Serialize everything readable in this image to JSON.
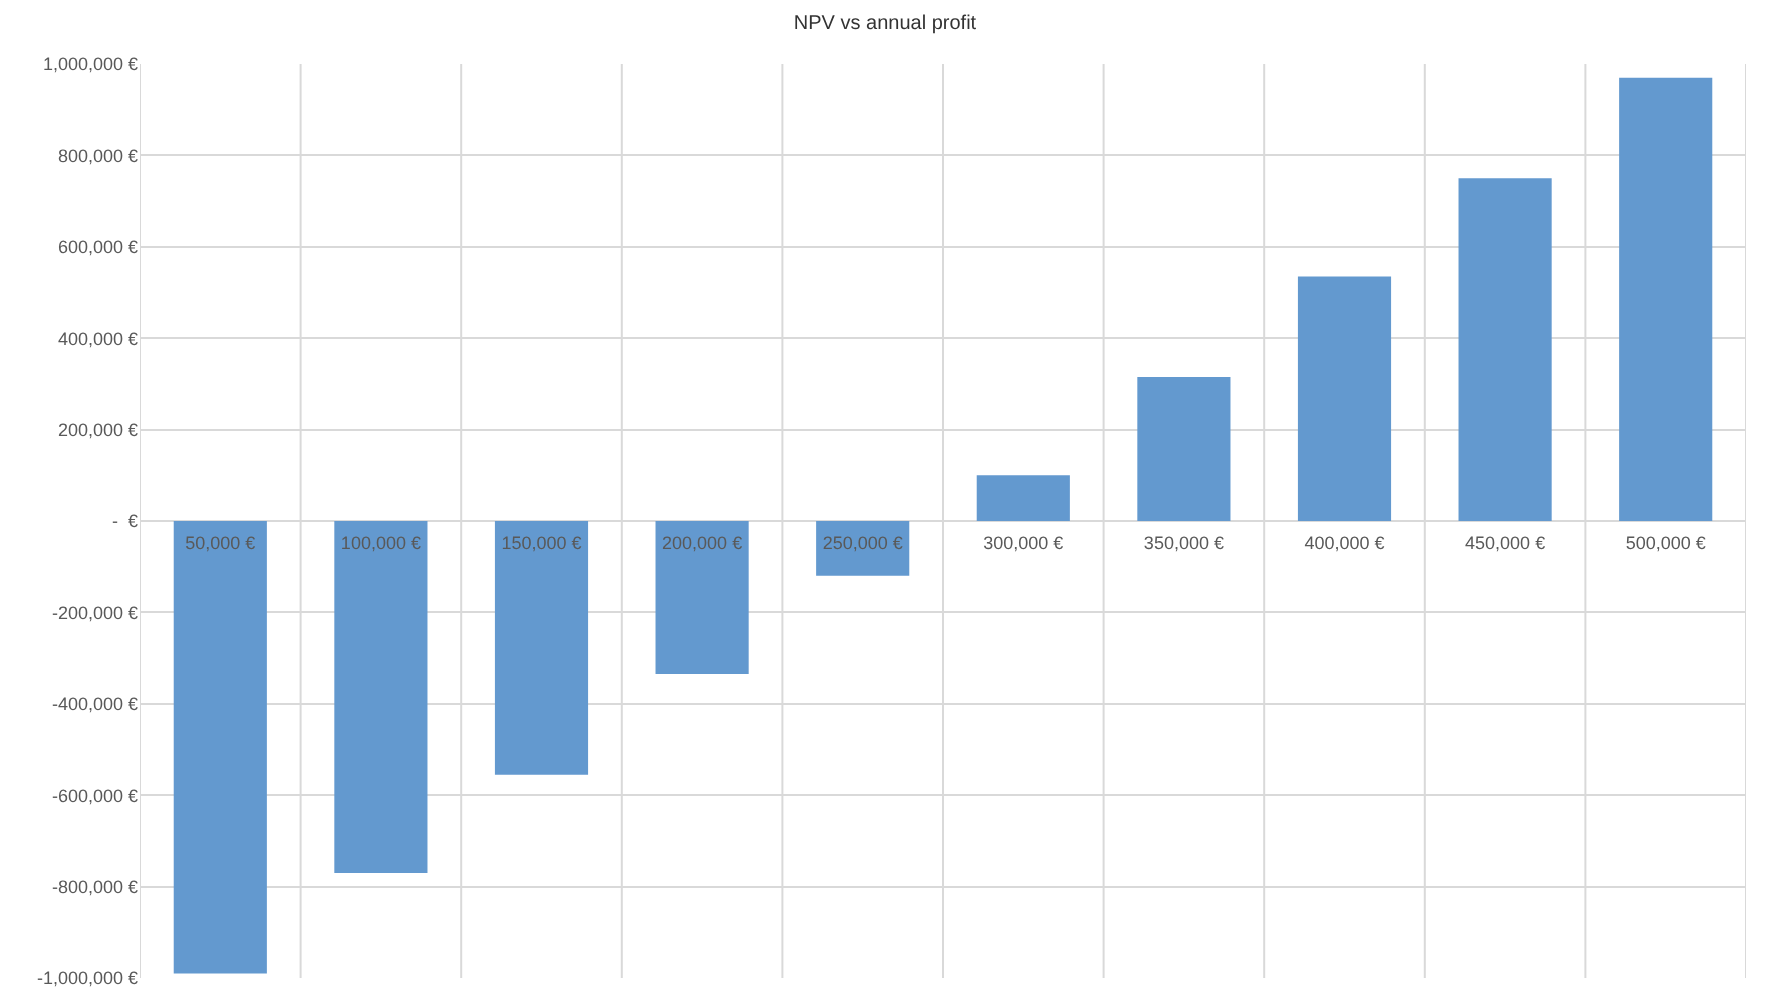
{
  "chart_data": {
    "type": "bar",
    "title": "NPV vs annual profit",
    "categories": [
      "50,000 €",
      "100,000 €",
      "150,000 €",
      "200,000 €",
      "250,000 €",
      "300,000 €",
      "350,000 €",
      "400,000 €",
      "450,000 €",
      "500,000 €"
    ],
    "values": [
      -990000,
      -770000,
      -555000,
      -335000,
      -120000,
      100000,
      315000,
      535000,
      750000,
      970000
    ],
    "color": "#6399cf",
    "ylim": [
      -1000000,
      1000000
    ],
    "yticks": [
      {
        "value": -1000000,
        "label": "-1,000,000 €"
      },
      {
        "value": -800000,
        "label": "-800,000 €"
      },
      {
        "value": -600000,
        "label": "-600,000 €"
      },
      {
        "value": -400000,
        "label": "-400,000 €"
      },
      {
        "value": -200000,
        "label": "-200,000 €"
      },
      {
        "value": 0,
        "label": "-  €"
      },
      {
        "value": 200000,
        "label": "200,000 €"
      },
      {
        "value": 400000,
        "label": "400,000 €"
      },
      {
        "value": 600000,
        "label": "600,000 €"
      },
      {
        "value": 800000,
        "label": "800,000 €"
      },
      {
        "value": 1000000,
        "label": "1,000,000 €"
      }
    ],
    "grid": true
  }
}
